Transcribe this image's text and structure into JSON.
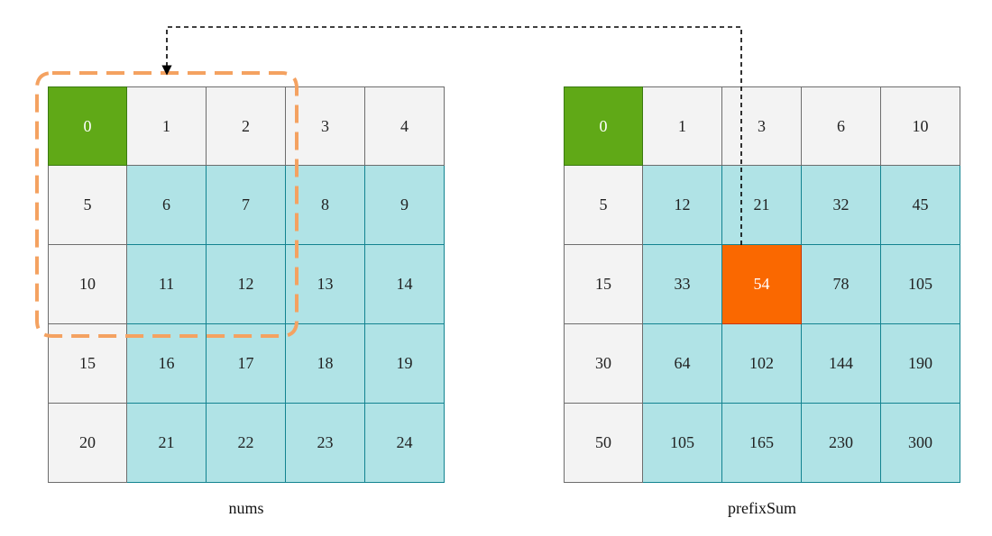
{
  "nums": {
    "label": "nums",
    "rows": [
      [
        "0",
        "1",
        "2",
        "3",
        "4"
      ],
      [
        "5",
        "6",
        "7",
        "8",
        "9"
      ],
      [
        "10",
        "11",
        "12",
        "13",
        "14"
      ],
      [
        "15",
        "16",
        "17",
        "18",
        "19"
      ],
      [
        "20",
        "21",
        "22",
        "23",
        "24"
      ]
    ],
    "highlight": {
      "row": 0,
      "col": 0,
      "color": "#60a917"
    },
    "selection": {
      "rows": [
        0,
        2
      ],
      "cols": [
        0,
        2
      ],
      "color": "#f4a261"
    }
  },
  "prefixSum": {
    "label": "prefixSum",
    "rows": [
      [
        "0",
        "1",
        "3",
        "6",
        "10"
      ],
      [
        "5",
        "12",
        "21",
        "32",
        "45"
      ],
      [
        "15",
        "33",
        "54",
        "78",
        "105"
      ],
      [
        "30",
        "64",
        "102",
        "144",
        "190"
      ],
      [
        "50",
        "105",
        "165",
        "230",
        "300"
      ]
    ],
    "highlight_origin": {
      "row": 0,
      "col": 0,
      "color": "#60a917"
    },
    "highlight_result": {
      "row": 2,
      "col": 2,
      "color": "#fa6800"
    }
  },
  "colors": {
    "gray_cell": "#f3f3f3",
    "teal_cell": "#b0e3e6",
    "teal_border": "#128390",
    "green": "#60a917",
    "orange": "#fa6800",
    "dashed_selection": "#f4a261",
    "connector": "#000000"
  }
}
